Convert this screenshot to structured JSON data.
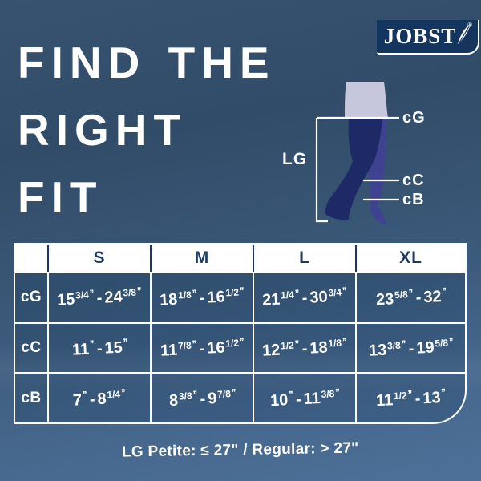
{
  "brand": {
    "name": "JOBST",
    "registered_mark": "®"
  },
  "headline": {
    "line1": "FIND THE",
    "line2": "RIGHT",
    "line3": "FIT"
  },
  "diagram": {
    "length_label": "LG",
    "marker_cg": "cG",
    "marker_cc": "cC",
    "marker_cb": "cB"
  },
  "table": {
    "columns": [
      "S",
      "M",
      "L",
      "XL"
    ],
    "unit_mark": "’’",
    "range_separator": "-",
    "rows": [
      {
        "label": "cG",
        "cells": [
          {
            "text": "15 3/4'' - 24 3/8''",
            "w1": "15",
            "f1": "3/4",
            "w2": "24",
            "f2": "3/8"
          },
          {
            "text": "18 1/8'' - 16 1/2''",
            "w1": "18",
            "f1": "1/8",
            "w2": "16",
            "f2": "1/2"
          },
          {
            "text": "21 1/4'' - 30 3/4''",
            "w1": "21",
            "f1": "1/4",
            "w2": "30",
            "f2": "3/4"
          },
          {
            "text": "23 5/8'' - 32''",
            "w1": "23",
            "f1": "5/8",
            "w2": "32",
            "f2": ""
          }
        ]
      },
      {
        "label": "cC",
        "cells": [
          {
            "text": "11'' - 15''",
            "w1": "11",
            "f1": "",
            "w2": "15",
            "f2": ""
          },
          {
            "text": "11 7/8'' - 16 1/2''",
            "w1": "11",
            "f1": "7/8",
            "w2": "16",
            "f2": "1/2"
          },
          {
            "text": "12 1/2'' - 18 1/8''",
            "w1": "12",
            "f1": "1/2",
            "w2": "18",
            "f2": "1/8"
          },
          {
            "text": "13 3/8'' - 19 5/8''",
            "w1": "13",
            "f1": "3/8",
            "w2": "19",
            "f2": "5/8"
          }
        ]
      },
      {
        "label": "cB",
        "cells": [
          {
            "text": "7'' - 8 1/4''",
            "w1": "7",
            "f1": "",
            "w2": "8",
            "f2": "1/4"
          },
          {
            "text": "8 3/8'' - 9 7/8''",
            "w1": "8",
            "f1": "3/8",
            "w2": "9",
            "f2": "7/8"
          },
          {
            "text": "10'' - 11 3/8''",
            "w1": "10",
            "f1": "",
            "w2": "11",
            "f2": "3/8"
          },
          {
            "text": "11 1/2'' - 13''",
            "w1": "11",
            "f1": "1/2",
            "w2": "13",
            "f2": ""
          }
        ]
      }
    ]
  },
  "footnote": "LG Petite: ≤ 27\" / Regular: > 27\"",
  "colors": {
    "background_top": "#324d68",
    "background_bottom": "#4d7199",
    "logo_navy": "#14355e",
    "leg_front": "#1e2a66",
    "leg_back": "#3e4291",
    "shorts": "#c6c7dd",
    "header_text": "#1c3a5f",
    "text": "#ffffff"
  }
}
